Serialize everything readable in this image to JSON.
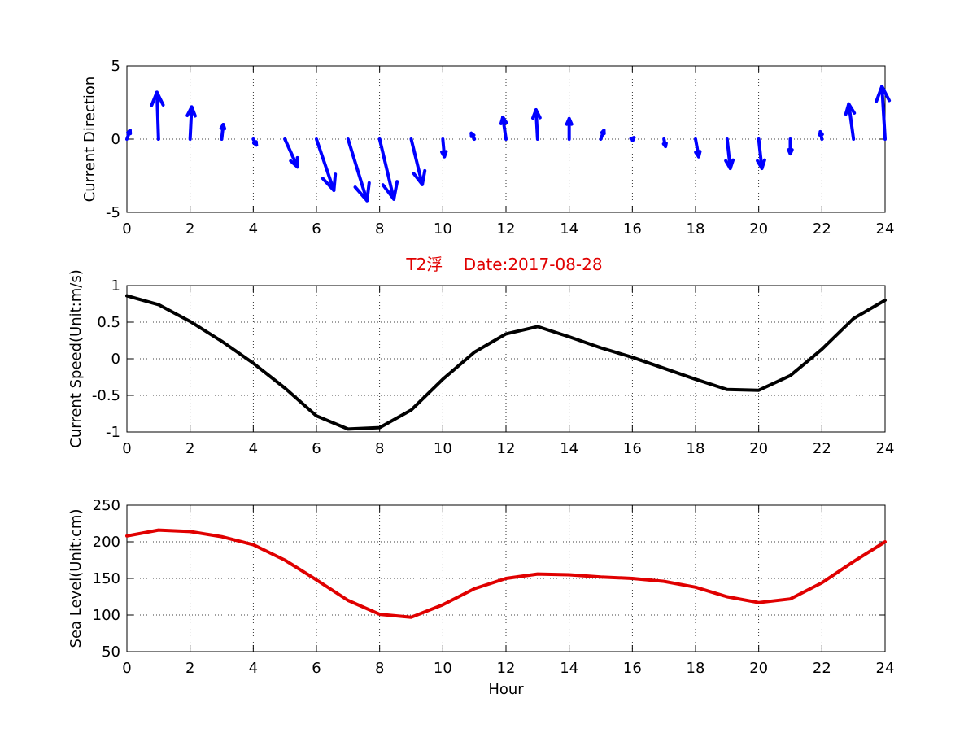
{
  "figure": {
    "title": "T2浮    Date:2017-08-28",
    "title_color": "#e00000"
  },
  "chart_data": [
    {
      "type": "quiver",
      "name": "direction",
      "title": "",
      "xlabel": "",
      "ylabel": "Current Direction",
      "xlim": [
        0,
        24
      ],
      "ylim": [
        -5,
        5
      ],
      "xticks": [
        0,
        2,
        4,
        6,
        8,
        10,
        12,
        14,
        16,
        18,
        20,
        22,
        24
      ],
      "yticks": [
        -5,
        0,
        5
      ],
      "grid": true,
      "color": "#0000ff",
      "x": [
        0,
        1,
        2,
        3,
        4,
        5,
        6,
        7,
        8,
        9,
        10,
        11,
        12,
        13,
        14,
        15,
        16,
        17,
        18,
        19,
        20,
        21,
        22,
        23,
        24
      ],
      "u": [
        0.1,
        -0.05,
        0.05,
        0.05,
        0.1,
        0.4,
        0.55,
        0.6,
        0.45,
        0.35,
        0.05,
        -0.1,
        -0.1,
        -0.05,
        0.0,
        0.1,
        0.05,
        0.05,
        0.1,
        0.1,
        0.1,
        0.0,
        -0.05,
        -0.15,
        -0.1
      ],
      "v": [
        0.6,
        3.2,
        2.2,
        1.0,
        -0.4,
        -1.9,
        -3.5,
        -4.2,
        -4.1,
        -3.1,
        -1.2,
        0.4,
        1.5,
        2.0,
        1.4,
        0.6,
        0.1,
        -0.5,
        -1.2,
        -2.0,
        -2.0,
        -1.0,
        0.5,
        2.4,
        3.6
      ]
    },
    {
      "type": "line",
      "name": "speed",
      "title": "",
      "xlabel": "",
      "ylabel": "Current Speed(Unit:m/s)",
      "xlim": [
        0,
        24
      ],
      "ylim": [
        -1,
        1
      ],
      "xticks": [
        0,
        2,
        4,
        6,
        8,
        10,
        12,
        14,
        16,
        18,
        20,
        22,
        24
      ],
      "yticks": [
        -1,
        -0.5,
        0,
        0.5,
        1
      ],
      "ytick_labels": [
        "-1",
        "-0.5",
        "0",
        "0.5",
        "1"
      ],
      "grid": true,
      "color": "#000000",
      "x": [
        0,
        1,
        2,
        3,
        4,
        5,
        6,
        7,
        8,
        9,
        10,
        11,
        12,
        13,
        14,
        15,
        16,
        17,
        18,
        19,
        20,
        21,
        22,
        23,
        24
      ],
      "y": [
        0.86,
        0.74,
        0.51,
        0.24,
        -0.06,
        -0.4,
        -0.78,
        -0.96,
        -0.94,
        -0.7,
        -0.28,
        0.09,
        0.34,
        0.44,
        0.3,
        0.15,
        0.02,
        -0.13,
        -0.28,
        -0.42,
        -0.43,
        -0.23,
        0.13,
        0.55,
        0.8
      ]
    },
    {
      "type": "line",
      "name": "sealevel",
      "title": "",
      "xlabel": "Hour",
      "ylabel": "Sea Level(Unit:cm)",
      "xlim": [
        0,
        24
      ],
      "ylim": [
        50,
        250
      ],
      "xticks": [
        0,
        2,
        4,
        6,
        8,
        10,
        12,
        14,
        16,
        18,
        20,
        22,
        24
      ],
      "yticks": [
        50,
        100,
        150,
        200,
        250
      ],
      "grid": true,
      "color": "#e00000",
      "x": [
        0,
        1,
        2,
        3,
        4,
        5,
        6,
        7,
        8,
        9,
        10,
        11,
        12,
        13,
        14,
        15,
        16,
        17,
        18,
        19,
        20,
        21,
        22,
        23,
        24
      ],
      "y": [
        208,
        216,
        214,
        207,
        196,
        175,
        148,
        120,
        101,
        97,
        114,
        136,
        150,
        156,
        155,
        152,
        150,
        146,
        138,
        125,
        117,
        122,
        144,
        173,
        200
      ]
    }
  ]
}
